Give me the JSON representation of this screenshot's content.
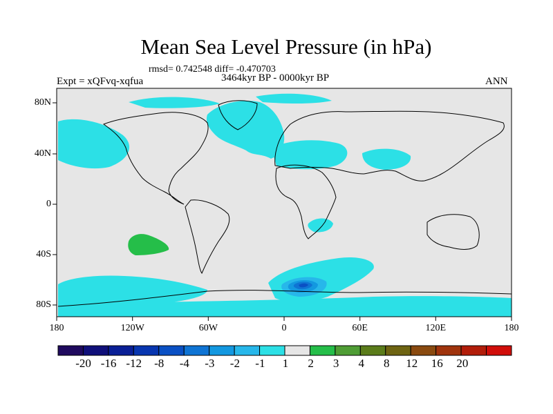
{
  "title": "Mean Sea Level Pressure (in hPa)",
  "stats_line": "rmsd= 0.742548 diff= -0.470703",
  "period": "3464kyr BP - 0000kyr BP",
  "experiment": "Expt = xQFvq-xqfua",
  "season": "ANN",
  "axes": {
    "lon_labels": [
      "180",
      "120W",
      "60W",
      "0",
      "60E",
      "120E",
      "180"
    ],
    "lat_labels": [
      "80N",
      "40N",
      "0",
      "40S",
      "80S"
    ]
  },
  "colorbar": {
    "labels": [
      "-20",
      "-16",
      "-12",
      "-8",
      "-4",
      "-3",
      "-2",
      "-1",
      "1",
      "2",
      "3",
      "4",
      "8",
      "12",
      "16",
      "20"
    ],
    "colors": [
      "#1f0a5e",
      "#10107a",
      "#0a1f96",
      "#0836b0",
      "#0a50c4",
      "#0f74d4",
      "#1398e0",
      "#27b7ea",
      "#2ce0e6",
      "#e6e6e6",
      "#25be49",
      "#4f9d35",
      "#5b7c1a",
      "#6e6412",
      "#8a4a10",
      "#a0340d",
      "#b21d0a",
      "#d10e0a"
    ]
  },
  "map_colors": {
    "background": "#e6e6e6",
    "neg_weak": "#2ce0e6",
    "neg_mid": "#27b7ea",
    "neg_strong": "#1398e0",
    "neg_stronger": "#0f74d4",
    "neg_core": "#0a50c4",
    "pos_weak": "#25be49",
    "coast": "#000000"
  }
}
